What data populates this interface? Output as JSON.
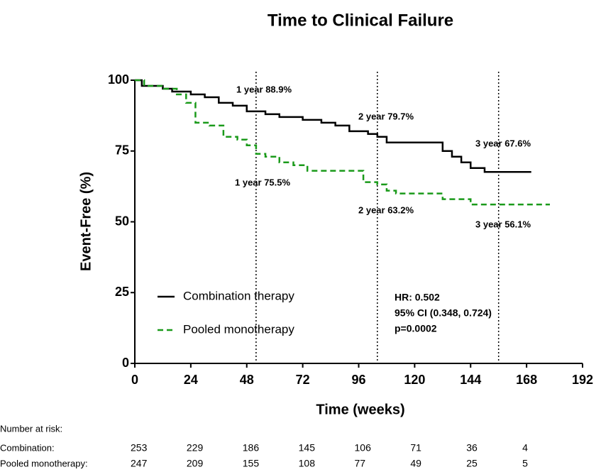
{
  "chart_data": {
    "type": "step",
    "title": "Time to Clinical Failure",
    "x_label": "Time (weeks)",
    "y_label": "Event-Free (%)",
    "xlim": [
      0,
      192
    ],
    "xticks": [
      0,
      24,
      48,
      72,
      96,
      120,
      144,
      168,
      192
    ],
    "ylim": [
      0,
      100
    ],
    "yticks": [
      0,
      25,
      50,
      75,
      100
    ],
    "legend": "lower left",
    "reference_lines": [
      52,
      104,
      156
    ],
    "series": [
      {
        "name": "Combination therapy",
        "color": "#000000",
        "dash": false,
        "x": [
          0,
          3,
          3,
          12,
          12,
          16,
          16,
          24,
          24,
          30,
          30,
          36,
          36,
          42,
          42,
          48,
          48,
          56,
          56,
          62,
          62,
          72,
          72,
          80,
          80,
          86,
          86,
          92,
          92,
          100,
          100,
          104,
          104,
          108,
          108,
          132,
          132,
          136,
          136,
          140,
          140,
          144,
          144,
          150,
          150,
          170
        ],
        "values": [
          100,
          100,
          98,
          98,
          97,
          97,
          96,
          96,
          95,
          95,
          94,
          94,
          92,
          92,
          91,
          91,
          89,
          89,
          88,
          88,
          87,
          87,
          86,
          86,
          85,
          85,
          84,
          84,
          82,
          82,
          81,
          81,
          80,
          80,
          78,
          78,
          75,
          75,
          73,
          73,
          71,
          71,
          69,
          69,
          67.6,
          67.6
        ]
      },
      {
        "name": "Pooled monotherapy",
        "color": "#1a9a1a",
        "dash": true,
        "x": [
          0,
          4,
          4,
          12,
          12,
          18,
          18,
          22,
          22,
          26,
          26,
          32,
          32,
          38,
          38,
          44,
          44,
          48,
          48,
          52,
          52,
          56,
          56,
          62,
          62,
          68,
          68,
          74,
          74,
          98,
          98,
          104,
          104,
          108,
          108,
          112,
          112,
          132,
          132,
          144,
          144,
          178
        ],
        "values": [
          100,
          100,
          98,
          98,
          97,
          97,
          95,
          95,
          92,
          92,
          85,
          85,
          84,
          84,
          80,
          80,
          79,
          79,
          77,
          77,
          74,
          74,
          73,
          73,
          71,
          71,
          70,
          70,
          68,
          68,
          64,
          64,
          63.2,
          63.2,
          61,
          61,
          60,
          60,
          58,
          58,
          56.1,
          56.1
        ]
      }
    ],
    "annotations": [
      "1 year 88.9%",
      "2 year 79.7%",
      "3 year 67.6%",
      "1 year 75.5%",
      "2 year 63.2%",
      "3 year 56.1%"
    ],
    "stats": [
      "HR: 0.502",
      "95% CI (0.348, 0.724)",
      "p=0.0002"
    ]
  },
  "risk_table": {
    "title": "Number at risk:",
    "rows": [
      {
        "label": "Combination:",
        "values": [
          253,
          229,
          186,
          145,
          106,
          71,
          36,
          4
        ]
      },
      {
        "label": "Pooled monotherapy:",
        "values": [
          247,
          209,
          155,
          108,
          77,
          49,
          25,
          5
        ]
      }
    ]
  }
}
